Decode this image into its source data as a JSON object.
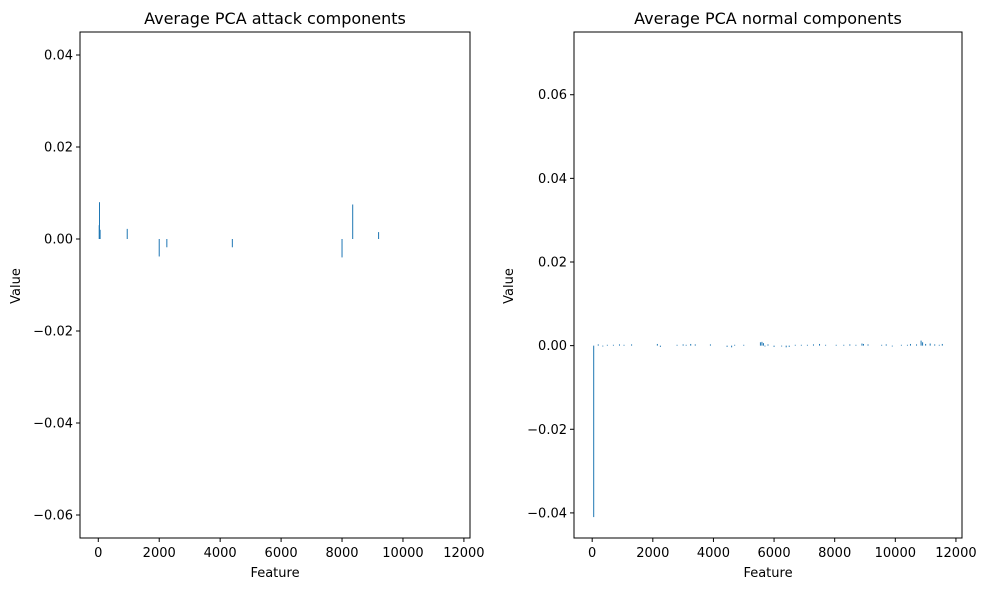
{
  "colors": {
    "bar": "#1f77b4",
    "axis": "#000000",
    "background": "#ffffff"
  },
  "chart_data": [
    {
      "type": "bar",
      "title": "Average PCA attack components",
      "xlabel": "Feature",
      "ylabel": "Value",
      "xlim": [
        -600,
        12200
      ],
      "ylim": [
        -0.065,
        0.045
      ],
      "xticks": [
        0,
        2000,
        4000,
        6000,
        8000,
        10000,
        12000
      ],
      "xtick_labels": [
        "0",
        "2000",
        "4000",
        "6000",
        "8000",
        "10000",
        "12000"
      ],
      "yticks": [
        0.04,
        0.02,
        0.0,
        -0.02,
        -0.04,
        -0.06
      ],
      "ytick_labels": [
        "0.04",
        "0.02",
        "0.00",
        "−0.02",
        "−0.04",
        "−0.06"
      ],
      "grid": false,
      "x": [
        30,
        40,
        60,
        950,
        2000,
        2250,
        4400,
        8000,
        8350,
        9200
      ],
      "values": [
        0.003,
        0.008,
        0.002,
        0.0022,
        -0.0038,
        -0.0018,
        -0.0018,
        -0.004,
        0.0075,
        0.0015
      ]
    },
    {
      "type": "bar",
      "title": "Average PCA normal components",
      "xlabel": "Feature",
      "ylabel": "Value",
      "xlim": [
        -600,
        12200
      ],
      "ylim": [
        -0.046,
        0.075
      ],
      "xticks": [
        0,
        2000,
        4000,
        6000,
        8000,
        10000,
        12000
      ],
      "xtick_labels": [
        "0",
        "2000",
        "4000",
        "6000",
        "8000",
        "10000",
        "12000"
      ],
      "yticks": [
        0.06,
        0.04,
        0.02,
        0.0,
        -0.02,
        -0.04
      ],
      "ytick_labels": [
        "0.06",
        "0.04",
        "0.02",
        "0.00",
        "−0.02",
        "−0.04"
      ],
      "grid": false,
      "x": [
        50,
        200,
        350,
        500,
        700,
        900,
        1050,
        1300,
        2150,
        2250,
        2800,
        3000,
        3100,
        3250,
        3400,
        3900,
        4450,
        4600,
        4700,
        5000,
        5550,
        5600,
        5650,
        5700,
        5800,
        6000,
        6250,
        6400,
        6500,
        6700,
        6900,
        7100,
        7300,
        7500,
        7700,
        8050,
        8300,
        8500,
        8700,
        8900,
        8950,
        9100,
        9550,
        9700,
        9900,
        10200,
        10400,
        10500,
        10700,
        10850,
        10900,
        11000,
        11150,
        11300,
        11450,
        11550
      ],
      "values": [
        -0.041,
        0.0003,
        -0.0002,
        0.0002,
        0.0002,
        0.0003,
        0.0002,
        0.0003,
        0.0004,
        -0.0003,
        0.0002,
        0.0003,
        0.0002,
        0.0004,
        0.0003,
        0.0003,
        -0.0003,
        -0.0004,
        0.0002,
        0.0002,
        0.0008,
        0.0009,
        0.0006,
        -0.0002,
        0.0003,
        -0.0003,
        -0.0002,
        -0.0004,
        -0.0003,
        0.0002,
        0.0002,
        0.0002,
        0.0003,
        0.0004,
        0.0002,
        0.0002,
        0.0002,
        0.0003,
        0.0002,
        0.0005,
        0.0004,
        0.0003,
        0.0002,
        0.0003,
        -0.0002,
        0.0002,
        0.0002,
        0.0004,
        0.0003,
        0.0012,
        0.0008,
        0.0004,
        0.0005,
        0.0003,
        0.0002,
        0.0004
      ]
    }
  ]
}
